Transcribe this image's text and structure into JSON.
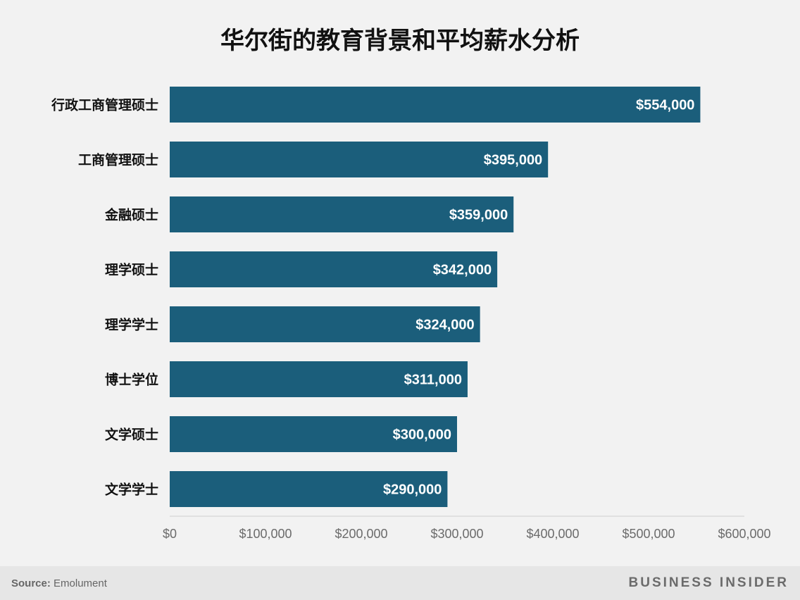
{
  "chart_data": {
    "type": "bar",
    "orientation": "horizontal",
    "title": "华尔街的教育背景和平均薪水分析",
    "categories": [
      "行政工商管理硕士",
      "工商管理硕士",
      "金融硕士",
      "理学硕士",
      "理学学士",
      "博士学位",
      "文学硕士",
      "文学学士"
    ],
    "values": [
      554000,
      395000,
      359000,
      342000,
      324000,
      311000,
      300000,
      290000
    ],
    "value_labels": [
      "$554,000",
      "$395,000",
      "$359,000",
      "$342,000",
      "$324,000",
      "$311,000",
      "$300,000",
      "$290,000"
    ],
    "xlim": [
      0,
      600000
    ],
    "x_ticks": [
      0,
      100000,
      200000,
      300000,
      400000,
      500000,
      600000
    ],
    "x_tick_labels": [
      "$0",
      "$100,000",
      "$200,000",
      "$300,000",
      "$400,000",
      "$500,000",
      "$600,000"
    ],
    "xlabel": "",
    "ylabel": "",
    "grid": false,
    "legend": false,
    "bar_color": "#1b5e7b"
  },
  "footer": {
    "source_label": "Source:",
    "source_text": " Emolument",
    "brand": "BUSINESS INSIDER"
  }
}
